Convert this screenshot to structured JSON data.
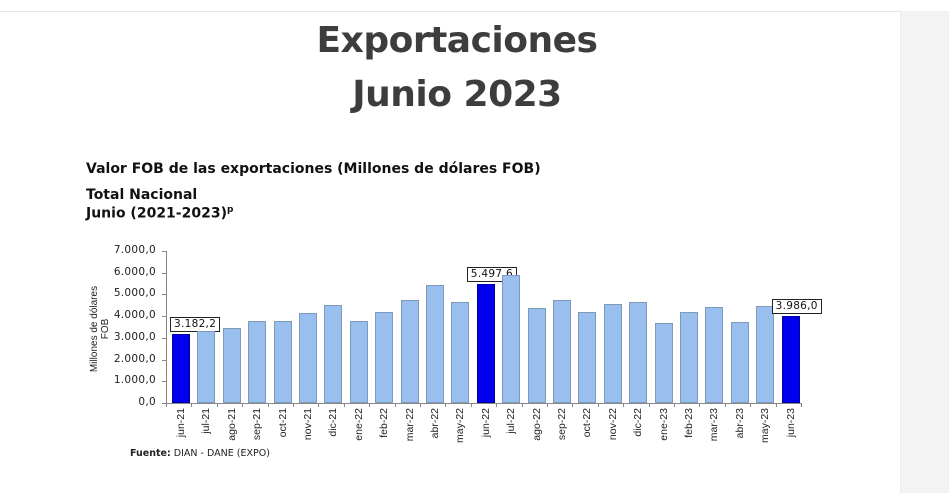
{
  "header": {
    "title_line1": "Exportaciones",
    "title_line2": "Junio 2023"
  },
  "subtitle": {
    "line1": "Valor FOB de las exportaciones (Millones de dólares FOB)",
    "line2": "Total Nacional",
    "line3": "Junio (2021-2023)",
    "line3_sup": "p"
  },
  "source": {
    "label": "Fuente:",
    "text": " DIAN  - DANE (EXPO)"
  },
  "colors": {
    "bar": "#99bfee",
    "highlight": "#0000ee"
  },
  "chart_data": {
    "type": "bar",
    "title": "Valor FOB de las exportaciones (Millones de dólares FOB) - Total Nacional - Junio (2021-2023)p",
    "xlabel": "",
    "ylabel": "Millones de dólares FOB",
    "ylim": [
      0,
      7000
    ],
    "yticks": [
      "0,0",
      "1.000,0",
      "2.000,0",
      "3.000,0",
      "4.000,0",
      "5.000,0",
      "6.000,0",
      "7.000,0"
    ],
    "categories": [
      "jun-21",
      "jul-21",
      "ago-21",
      "sep-21",
      "oct-21",
      "nov-21",
      "dic-21",
      "ene-22",
      "feb-22",
      "mar-22",
      "abr-22",
      "may-22",
      "jun-22",
      "jul-22",
      "ago-22",
      "sep-22",
      "oct-22",
      "nov-22",
      "dic-22",
      "ene-23",
      "feb-23",
      "mar-23",
      "abr-23",
      "may-23",
      "jun-23"
    ],
    "values": [
      3182.2,
      3300,
      3450,
      3780,
      3780,
      4140,
      4500,
      3780,
      4200,
      4750,
      5440,
      4650,
      5497.6,
      5900,
      4380,
      4750,
      4200,
      4560,
      4650,
      3680,
      4200,
      4420,
      3720,
      4470,
      3986.0
    ],
    "highlighted": [
      "jun-21",
      "jun-22",
      "jun-23"
    ],
    "data_labels": [
      {
        "category": "jun-21",
        "text": "3.182,2"
      },
      {
        "category": "jun-22",
        "text": "5.497,6"
      },
      {
        "category": "jun-23",
        "text": "3.986,0"
      }
    ],
    "grid": false,
    "legend": "none"
  }
}
